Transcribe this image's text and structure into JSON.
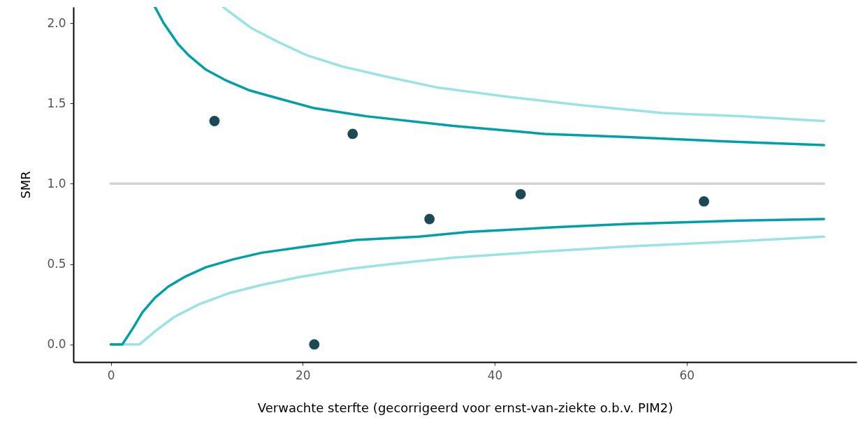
{
  "chart_data": {
    "type": "scatter",
    "xlabel": "Verwachte sterfte (gecorrigeerd voor ernst-van-ziekte o.b.v. PIM2)",
    "ylabel": "SMR",
    "xlim": [
      -3.9,
      77.7
    ],
    "ylim": [
      -0.11,
      2.1
    ],
    "xticks": [
      0,
      20,
      40,
      60
    ],
    "yticks": [
      {
        "value": 0,
        "label": "0.0"
      },
      {
        "value": 0.5,
        "label": "0.5"
      },
      {
        "value": 1,
        "label": "1.0"
      },
      {
        "value": 1.5,
        "label": "1.5"
      },
      {
        "value": 2,
        "label": "2.0"
      }
    ],
    "grid": false,
    "series": [
      {
        "type": "line",
        "color": "#d3d3d3",
        "x": [
          0,
          74.3
        ],
        "values": [
          1,
          1
        ]
      },
      {
        "type": "line",
        "color": "#99e3e3",
        "x": [
          11.7,
          12.8,
          14.6,
          17.5,
          20.4,
          24.1,
          28.4,
          33.9,
          41.5,
          48.8,
          57.5,
          65.5,
          74.3
        ],
        "values": [
          2.1,
          2.05,
          1.97,
          1.88,
          1.8,
          1.73,
          1.67,
          1.6,
          1.54,
          1.49,
          1.44,
          1.42,
          1.39
        ]
      },
      {
        "type": "line",
        "color": "#99e3e3",
        "x": [
          0,
          3,
          4.8,
          6.6,
          9.2,
          12.4,
          15.7,
          19.7,
          24.8,
          29.2,
          35.7,
          43,
          53.9,
          64.8,
          74.3
        ],
        "values": [
          0,
          0,
          0.09,
          0.17,
          0.25,
          0.32,
          0.37,
          0.42,
          0.47,
          0.5,
          0.54,
          0.57,
          0.61,
          0.64,
          0.67
        ]
      },
      {
        "type": "line",
        "color": "#00a0a8",
        "x": [
          4.6,
          5.5,
          7,
          8.1,
          9.9,
          12.1,
          14.5,
          17.5,
          21.2,
          26.6,
          35.7,
          45.2,
          53.9,
          65.5,
          74.3
        ],
        "values": [
          2.1,
          2.0,
          1.87,
          1.8,
          1.71,
          1.64,
          1.58,
          1.53,
          1.47,
          1.42,
          1.36,
          1.31,
          1.29,
          1.26,
          1.24
        ]
      },
      {
        "type": "line",
        "color": "#00a0a8",
        "x": [
          0,
          1.2,
          2.3,
          3.3,
          4.6,
          6,
          7.7,
          9.9,
          12.8,
          15.7,
          20.4,
          25.5,
          32.1,
          37.2,
          46.6,
          53.9,
          65.5,
          74.3
        ],
        "values": [
          0,
          0,
          0.1,
          0.2,
          0.29,
          0.36,
          0.42,
          0.48,
          0.53,
          0.57,
          0.61,
          0.65,
          0.67,
          0.7,
          0.73,
          0.75,
          0.77,
          0.78
        ]
      },
      {
        "color": "#1b4a55",
        "x": [
          10.8,
          21.2,
          25.2,
          33.2,
          42.7,
          61.8
        ],
        "values": [
          1.39,
          0,
          1.31,
          0.78,
          0.935,
          0.89
        ]
      }
    ]
  }
}
